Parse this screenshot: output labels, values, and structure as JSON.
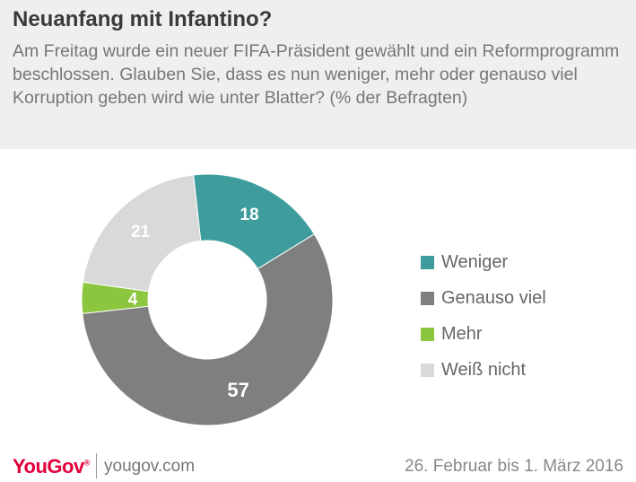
{
  "header": {
    "title": "Neuanfang mit Infantino?",
    "subtitle": "Am Freitag wurde ein neuer FIFA-Präsident gewählt und ein Reformprogramm beschlossen. Glauben Sie, dass es nun weniger, mehr oder genauso viel Korruption geben wird wie unter Blatter? (% der Befragten)"
  },
  "chart_data": {
    "type": "pie",
    "donut": true,
    "categories": [
      "Weniger",
      "Genauso viel",
      "Mehr",
      "Weiß nicht"
    ],
    "values": [
      18,
      57,
      4,
      21
    ],
    "colors": [
      "#3f9c9d",
      "#7f7f7f",
      "#8cc63f",
      "#d9d9d9"
    ],
    "label_colors": [
      "#ffffff",
      "#ffffff",
      "#ffffff",
      "#ffffff"
    ],
    "legend_placement": "right"
  },
  "footer": {
    "brand": "YouGov",
    "url": "yougov.com",
    "date": "26. Februar bis 1. März 2016"
  }
}
